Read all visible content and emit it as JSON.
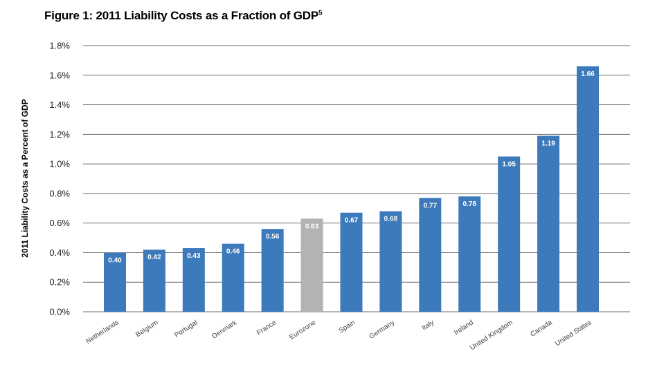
{
  "title": "Figure 1: 2011 Liability Costs as a Fraction of GDP",
  "title_sup": "5",
  "chart_data": {
    "type": "bar",
    "title": "Figure 1: 2011 Liability Costs as a Fraction of GDP",
    "xlabel": "",
    "ylabel": "2011 Liability Costs as a Percent of GDP",
    "ylim": [
      0,
      1.8
    ],
    "yticks": [
      "0.0%",
      "0.2%",
      "0.4%",
      "0.6%",
      "0.8%",
      "1.0%",
      "1.2%",
      "1.4%",
      "1.6%",
      "1.8%"
    ],
    "grid": true,
    "categories": [
      "Netherlands",
      "Belgium",
      "Portugal",
      "Denmark",
      "France",
      "Eurozone",
      "Spain",
      "Germany",
      "Italy",
      "Ireland",
      "United Kingdom",
      "Canada",
      "United States"
    ],
    "values": [
      0.4,
      0.42,
      0.43,
      0.46,
      0.56,
      0.63,
      0.67,
      0.68,
      0.77,
      0.78,
      1.05,
      1.19,
      1.66
    ],
    "data_labels": [
      "0.40",
      "0.42",
      "0.43",
      "0.46",
      "0.56",
      "0.63",
      "0.67",
      "0.68",
      "0.77",
      "0.78",
      "1.05",
      "1.19",
      "1.66"
    ],
    "colors": {
      "default": "#3d7abc",
      "highlight": "#b3b3b3",
      "highlight_category": "Eurozone",
      "grid": "#6e6e6e"
    }
  }
}
